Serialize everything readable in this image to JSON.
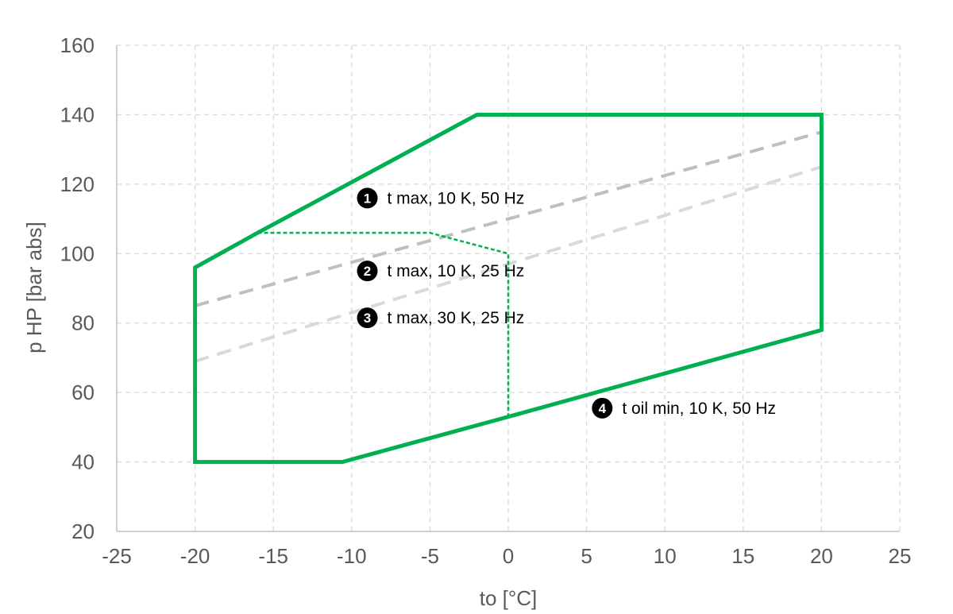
{
  "chart_data": {
    "type": "line",
    "xlabel": "to [°C]",
    "ylabel": "p HP [bar abs]",
    "xlim": [
      -25,
      25
    ],
    "ylim": [
      20,
      160
    ],
    "xticks": [
      -25,
      -20,
      -15,
      -10,
      -5,
      0,
      5,
      10,
      15,
      20,
      25
    ],
    "yticks": [
      20,
      40,
      60,
      80,
      100,
      120,
      140,
      160
    ],
    "x_tick_labels": [
      "-25",
      "-20",
      "-15",
      "-10",
      "-5",
      "0",
      "5",
      "10",
      "15",
      "20",
      "25"
    ],
    "y_tick_labels": [
      "20",
      "40",
      "60",
      "80",
      "100",
      "120",
      "140",
      "160"
    ],
    "grid": true,
    "series": [
      {
        "key": "envelope",
        "style": "solid",
        "color": "#00b050",
        "closed": true,
        "points": [
          [
            -20,
            40
          ],
          [
            -20,
            96
          ],
          [
            -16,
            106
          ],
          [
            -2,
            140
          ],
          [
            20,
            140
          ],
          [
            20,
            78
          ],
          [
            0,
            53
          ],
          [
            -10.6,
            40
          ]
        ]
      },
      {
        "key": "envelope-25hz",
        "style": "dotted",
        "color": "#00b050",
        "closed": false,
        "points": [
          [
            -16,
            106
          ],
          [
            -5,
            106
          ],
          [
            0,
            100
          ],
          [
            0,
            53
          ]
        ]
      },
      {
        "key": "line-10k",
        "style": "dashed",
        "color": "#bfbfbf",
        "closed": false,
        "points": [
          [
            -20,
            85
          ],
          [
            20,
            135
          ]
        ]
      },
      {
        "key": "line-30k",
        "style": "dashed",
        "color": "#d9d9d9",
        "closed": false,
        "points": [
          [
            -20,
            69
          ],
          [
            20,
            125
          ]
        ]
      }
    ],
    "annotations": [
      {
        "number": "1",
        "text": "t max, 10 K, 50 Hz",
        "x": -9,
        "y": 116
      },
      {
        "number": "2",
        "text": "t max, 10 K, 25 Hz",
        "x": -9,
        "y": 95
      },
      {
        "number": "3",
        "text": "t max, 30 K, 25 Hz",
        "x": -9,
        "y": 81.5
      },
      {
        "number": "4",
        "text": "t oil min, 10 K, 50 Hz",
        "x": 6,
        "y": 55.5
      }
    ]
  }
}
